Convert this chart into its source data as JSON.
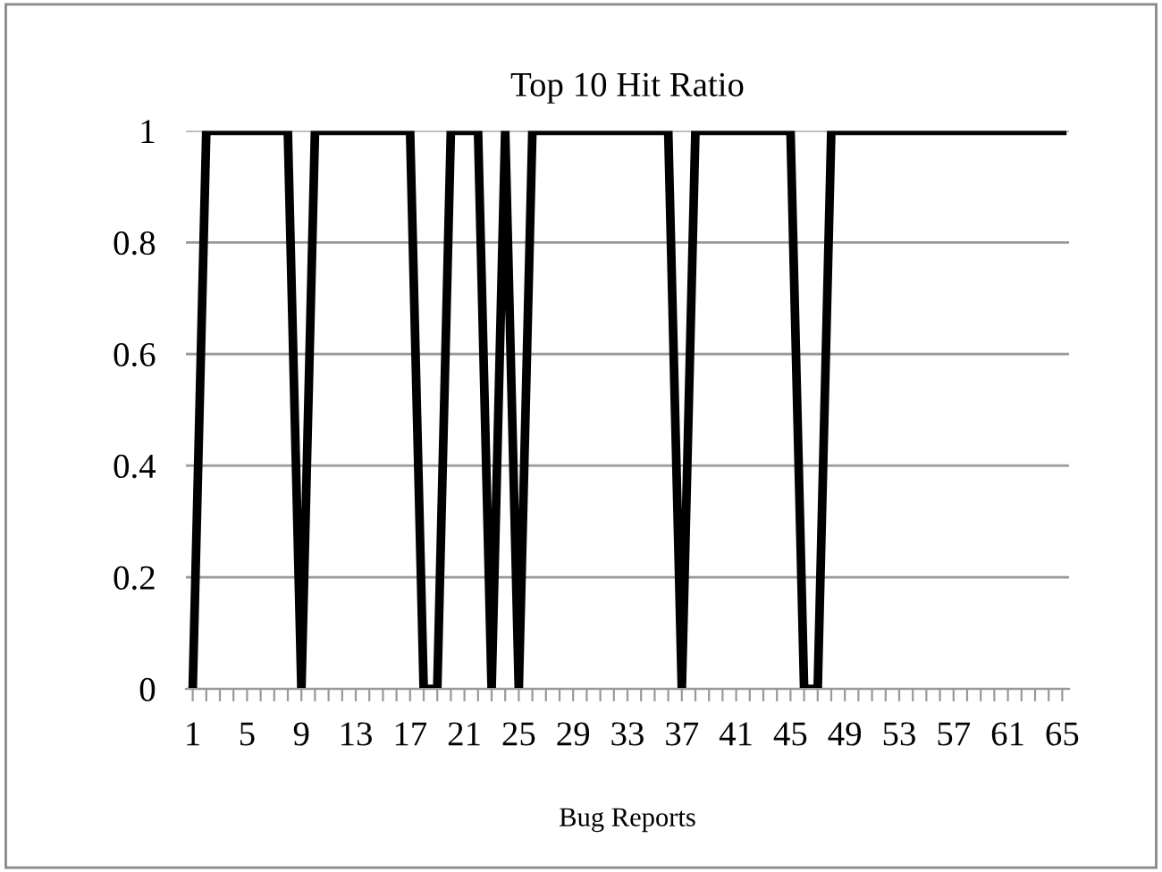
{
  "chart_data": {
    "type": "line",
    "title": "Top 10 Hit Ratio",
    "xlabel": "Bug Reports",
    "categories": [
      "1",
      null,
      null,
      null,
      "5",
      null,
      null,
      null,
      "9",
      null,
      null,
      null,
      "13",
      null,
      null,
      null,
      "17",
      null,
      null,
      null,
      "21",
      null,
      null,
      null,
      "25",
      null,
      null,
      null,
      "29",
      null,
      null,
      null,
      "33",
      null,
      null,
      null,
      "37",
      null,
      null,
      null,
      "41",
      null,
      null,
      null,
      "45",
      null,
      null,
      null,
      "49",
      null,
      null,
      null,
      "53",
      null,
      null,
      null,
      "57",
      null,
      null,
      null,
      "61",
      null,
      null,
      null,
      "65"
    ],
    "series": [
      {
        "color": "#000000",
        "values": [
          0,
          1,
          1,
          1,
          1,
          1,
          1,
          1,
          0,
          1,
          1,
          1,
          1,
          1,
          1,
          1,
          1,
          0,
          0,
          1,
          1,
          1,
          0,
          1,
          0,
          1,
          1,
          1,
          1,
          1,
          1,
          1,
          1,
          1,
          1,
          1,
          0,
          1,
          1,
          1,
          1,
          1,
          1,
          1,
          1,
          0,
          0,
          1,
          1,
          1,
          1,
          1,
          1,
          1,
          1,
          1,
          1,
          1,
          1,
          1,
          1,
          1,
          1,
          1,
          1
        ]
      }
    ],
    "ylim": [
      0,
      1
    ],
    "yticks": [
      0,
      0.2,
      0.4,
      0.6,
      0.8,
      1
    ],
    "grid": "y",
    "legend": false
  }
}
